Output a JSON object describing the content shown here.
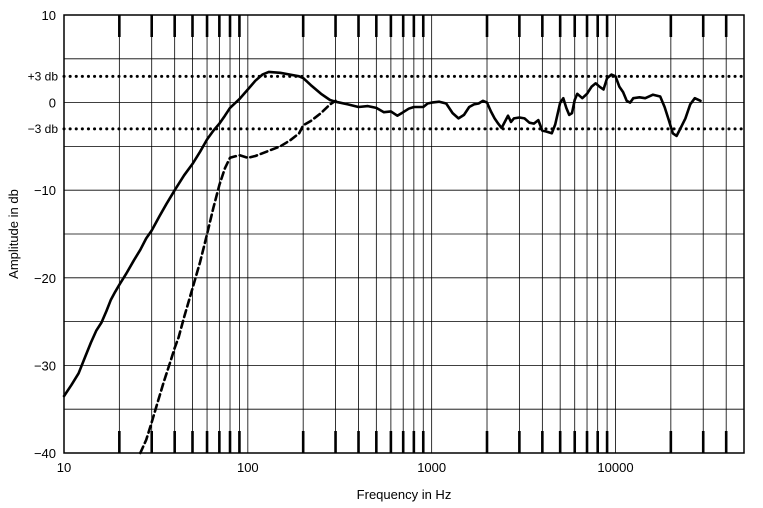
{
  "chart_data": {
    "type": "line",
    "title": "",
    "xlabel": "Frequency in Hz",
    "ylabel": "Amplitude in db",
    "x_scale": "log",
    "xlim": [
      10,
      50000
    ],
    "ylim": [
      -40,
      10
    ],
    "x_tick_labels": [
      {
        "value": 10,
        "label": "10"
      },
      {
        "value": 100,
        "label": "100"
      },
      {
        "value": 1000,
        "label": "1000"
      },
      {
        "value": 10000,
        "label": "10000"
      }
    ],
    "y_tick_labels": [
      {
        "value": 10,
        "label": "10"
      },
      {
        "value": 0,
        "label": "0"
      },
      {
        "value": -10,
        "label": "−10"
      },
      {
        "value": -20,
        "label": "−20"
      },
      {
        "value": -30,
        "label": "−30"
      },
      {
        "value": -40,
        "label": "−40"
      }
    ],
    "reference_lines": [
      {
        "value": 3,
        "label": "+3 db",
        "style": "dotted"
      },
      {
        "value": -3,
        "label": "−3 db",
        "style": "dotted"
      }
    ],
    "grid": true,
    "minor_x_ticks": [
      20,
      30,
      40,
      50,
      60,
      70,
      80,
      90,
      200,
      300,
      400,
      500,
      600,
      700,
      800,
      900,
      2000,
      3000,
      4000,
      5000,
      6000,
      7000,
      8000,
      9000,
      20000,
      30000,
      40000
    ],
    "series": [
      {
        "style": "solid",
        "points": [
          [
            10,
            -33.5
          ],
          [
            11,
            -32.2
          ],
          [
            12,
            -30.9
          ],
          [
            13,
            -29.1
          ],
          [
            14,
            -27.4
          ],
          [
            15,
            -26.0
          ],
          [
            16,
            -25.1
          ],
          [
            17,
            -23.8
          ],
          [
            18,
            -22.5
          ],
          [
            19,
            -21.6
          ],
          [
            20,
            -20.8
          ],
          [
            22,
            -19.4
          ],
          [
            24,
            -18.0
          ],
          [
            26,
            -16.8
          ],
          [
            28,
            -15.5
          ],
          [
            30,
            -14.6
          ],
          [
            33,
            -13.0
          ],
          [
            36,
            -11.6
          ],
          [
            40,
            -10.0
          ],
          [
            45,
            -8.3
          ],
          [
            50,
            -7.0
          ],
          [
            55,
            -5.6
          ],
          [
            60,
            -4.2
          ],
          [
            65,
            -3.2
          ],
          [
            70,
            -2.4
          ],
          [
            75,
            -1.5
          ],
          [
            80,
            -0.6
          ],
          [
            90,
            0.4
          ],
          [
            100,
            1.5
          ],
          [
            110,
            2.5
          ],
          [
            120,
            3.2
          ],
          [
            130,
            3.5
          ],
          [
            150,
            3.4
          ],
          [
            170,
            3.2
          ],
          [
            190,
            3.0
          ],
          [
            200,
            2.8
          ],
          [
            220,
            2.0
          ],
          [
            250,
            1.0
          ],
          [
            280,
            0.3
          ],
          [
            300,
            0.1
          ],
          [
            350,
            -0.2
          ],
          [
            400,
            -0.5
          ],
          [
            450,
            -0.4
          ],
          [
            500,
            -0.6
          ],
          [
            550,
            -1.1
          ],
          [
            600,
            -1.0
          ],
          [
            650,
            -1.5
          ],
          [
            700,
            -1.1
          ],
          [
            750,
            -0.7
          ],
          [
            800,
            -0.5
          ],
          [
            900,
            -0.5
          ],
          [
            950,
            -0.1
          ],
          [
            1000,
            0.0
          ],
          [
            1100,
            0.1
          ],
          [
            1200,
            -0.1
          ],
          [
            1300,
            -1.2
          ],
          [
            1400,
            -1.8
          ],
          [
            1500,
            -1.4
          ],
          [
            1600,
            -0.5
          ],
          [
            1700,
            -0.2
          ],
          [
            1800,
            -0.1
          ],
          [
            1900,
            0.2
          ],
          [
            2000,
            0.0
          ],
          [
            2100,
            -1.0
          ],
          [
            2200,
            -1.8
          ],
          [
            2300,
            -2.4
          ],
          [
            2400,
            -2.9
          ],
          [
            2500,
            -2.2
          ],
          [
            2600,
            -1.5
          ],
          [
            2700,
            -2.2
          ],
          [
            2800,
            -1.8
          ],
          [
            3000,
            -1.7
          ],
          [
            3200,
            -1.8
          ],
          [
            3400,
            -2.3
          ],
          [
            3600,
            -2.4
          ],
          [
            3800,
            -2.0
          ],
          [
            4000,
            -3.2
          ],
          [
            4200,
            -3.3
          ],
          [
            4500,
            -3.5
          ],
          [
            4700,
            -2.5
          ],
          [
            5000,
            0.0
          ],
          [
            5200,
            0.5
          ],
          [
            5400,
            -0.6
          ],
          [
            5600,
            -1.4
          ],
          [
            5800,
            -1.2
          ],
          [
            6000,
            0.3
          ],
          [
            6200,
            1.0
          ],
          [
            6600,
            0.5
          ],
          [
            7000,
            1.0
          ],
          [
            7400,
            1.8
          ],
          [
            7800,
            2.2
          ],
          [
            8200,
            1.8
          ],
          [
            8600,
            1.5
          ],
          [
            9000,
            2.8
          ],
          [
            9500,
            3.2
          ],
          [
            10000,
            3.0
          ],
          [
            10500,
            1.8
          ],
          [
            11000,
            1.2
          ],
          [
            11500,
            0.2
          ],
          [
            12000,
            0.0
          ],
          [
            12500,
            0.5
          ],
          [
            13500,
            0.6
          ],
          [
            14500,
            0.5
          ],
          [
            16000,
            0.9
          ],
          [
            17500,
            0.7
          ],
          [
            18500,
            -0.5
          ],
          [
            19500,
            -2.0
          ],
          [
            20500,
            -3.5
          ],
          [
            21500,
            -3.8
          ],
          [
            22500,
            -3.0
          ],
          [
            24000,
            -1.8
          ],
          [
            25500,
            -0.2
          ],
          [
            27000,
            0.5
          ],
          [
            29000,
            0.2
          ]
        ]
      },
      {
        "style": "dashed",
        "points": [
          [
            26,
            -40
          ],
          [
            28,
            -38.5
          ],
          [
            30,
            -36.5
          ],
          [
            32,
            -34.5
          ],
          [
            35,
            -31.8
          ],
          [
            38,
            -29.5
          ],
          [
            40,
            -28.0
          ],
          [
            42,
            -26.8
          ],
          [
            45,
            -24.5
          ],
          [
            48,
            -22.5
          ],
          [
            50,
            -21.2
          ],
          [
            55,
            -18.2
          ],
          [
            60,
            -15.0
          ],
          [
            65,
            -12.0
          ],
          [
            70,
            -9.4
          ],
          [
            75,
            -7.5
          ],
          [
            80,
            -6.3
          ],
          [
            90,
            -6.0
          ],
          [
            100,
            -6.3
          ],
          [
            110,
            -6.1
          ],
          [
            130,
            -5.5
          ],
          [
            150,
            -5.0
          ],
          [
            170,
            -4.3
          ],
          [
            190,
            -3.5
          ],
          [
            200,
            -2.6
          ],
          [
            220,
            -2.1
          ],
          [
            250,
            -1.2
          ],
          [
            280,
            -0.2
          ],
          [
            300,
            0.2
          ]
        ]
      }
    ]
  }
}
